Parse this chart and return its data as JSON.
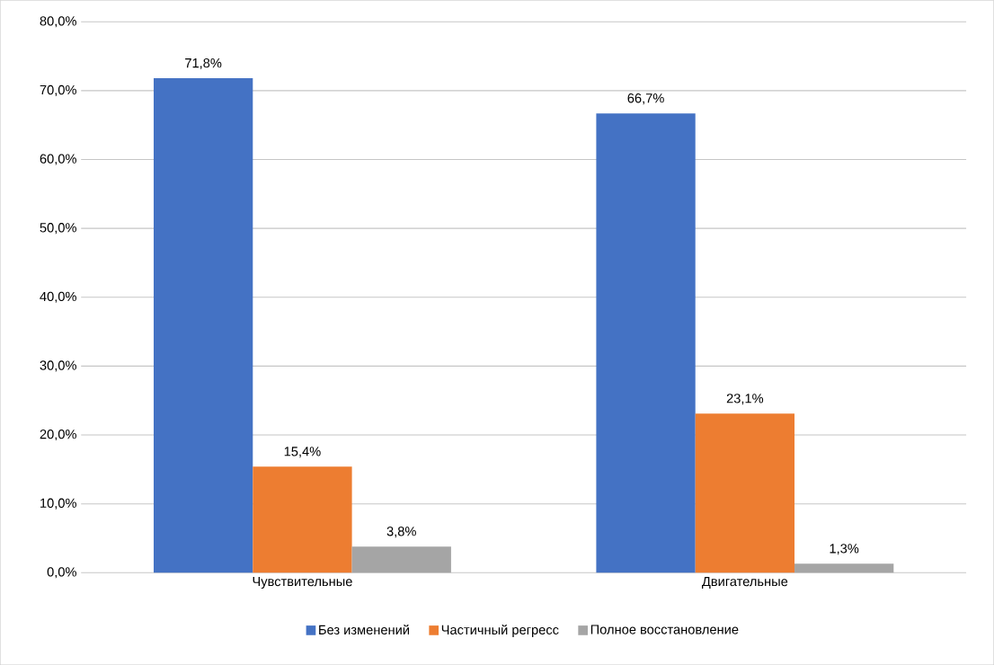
{
  "chart_data": {
    "type": "bar",
    "categories": [
      "Чувствительные",
      "Двигательные"
    ],
    "series": [
      {
        "name": "Без изменений",
        "color": "#4472c4",
        "values": [
          71.8,
          66.7
        ],
        "value_labels": [
          "71,8%",
          "66,7%"
        ]
      },
      {
        "name": "Частичный регресс",
        "color": "#ed7d31",
        "values": [
          15.4,
          23.1
        ],
        "value_labels": [
          "15,4%",
          "23,1%"
        ]
      },
      {
        "name": "Полное восстановление",
        "color": "#a5a5a5",
        "values": [
          3.8,
          1.3
        ],
        "value_labels": [
          "3,8%",
          "1,3%"
        ]
      }
    ],
    "ylim": [
      0,
      80
    ],
    "yticks": [
      {
        "value": 0,
        "label": "0,0%"
      },
      {
        "value": 10,
        "label": "10,0%"
      },
      {
        "value": 20,
        "label": "20,0%"
      },
      {
        "value": 30,
        "label": "30,0%"
      },
      {
        "value": 40,
        "label": "40,0%"
      },
      {
        "value": 50,
        "label": "50,0%"
      },
      {
        "value": 60,
        "label": "60,0%"
      },
      {
        "value": 70,
        "label": "70,0%"
      },
      {
        "value": 80,
        "label": "80,0%"
      }
    ],
    "grid": "y",
    "legend": "bottom"
  }
}
